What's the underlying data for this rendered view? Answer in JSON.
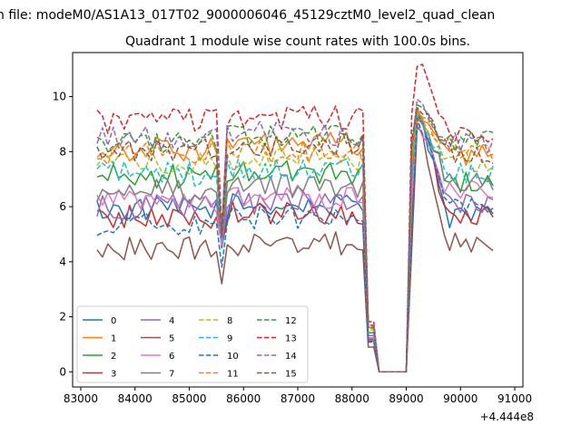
{
  "header": {
    "suptitle": "n file: modeM0/AS1A13_017T02_9000006046_45129cztM0_level2_quad_clean",
    "title": "Quadrant 1 module wise count rates with 100.0s bins."
  },
  "chart_data": {
    "type": "line",
    "title": "Quadrant 1 module wise count rates with 100.0s bins.",
    "xlabel": "",
    "ylabel": "",
    "x_offset_label": "+4.444e8",
    "xlim": [
      82850,
      91150
    ],
    "ylim": [
      -0.55,
      11.6
    ],
    "xticks": [
      83000,
      84000,
      85000,
      86000,
      87000,
      88000,
      89000,
      90000,
      91000
    ],
    "xtick_labels": [
      "83000",
      "84000",
      "85000",
      "86000",
      "87000",
      "88000",
      "89000",
      "90000",
      "91000"
    ],
    "yticks": [
      0,
      2,
      4,
      6,
      8,
      10
    ],
    "ytick_labels": [
      "0",
      "2",
      "4",
      "6",
      "8",
      "10"
    ],
    "grid": false,
    "legend_position": "lower-left",
    "legend_columns": 4,
    "x_range": {
      "start": 83300,
      "end": 90680,
      "step": 100
    },
    "gap": {
      "drop_from": 88250,
      "zero_from": 88450,
      "zero_to": 89050,
      "rise_at": 89150
    },
    "dip": {
      "x": 85600
    },
    "series": [
      {
        "name": "0",
        "color": "#1f77b4",
        "dash": "solid",
        "level": 5.9,
        "after_gap": 5.6,
        "peak": 9.4,
        "dip": 4.5,
        "end": 1.4
      },
      {
        "name": "1",
        "color": "#ff7f0e",
        "dash": "solid",
        "level": 8.1,
        "after_gap": 7.9,
        "peak": 9.6,
        "dip": 4.8,
        "end": 1.6
      },
      {
        "name": "2",
        "color": "#2ca02c",
        "dash": "solid",
        "level": 7.1,
        "after_gap": 6.9,
        "peak": 9.5,
        "dip": 4.6,
        "end": 1.5
      },
      {
        "name": "3",
        "color": "#d62728",
        "dash": "solid",
        "level": 5.6,
        "after_gap": 5.8,
        "peak": 9.3,
        "dip": 4.7,
        "end": 1.2
      },
      {
        "name": "4",
        "color": "#9467bd",
        "dash": "solid",
        "level": 6.0,
        "after_gap": 6.2,
        "peak": 9.2,
        "dip": 4.6,
        "end": 1.3
      },
      {
        "name": "5",
        "color": "#8c564b",
        "dash": "solid",
        "level": 4.5,
        "after_gap": 4.8,
        "peak": 8.9,
        "dip": 3.2,
        "end": 1.0
      },
      {
        "name": "6",
        "color": "#e377c2",
        "dash": "solid",
        "level": 6.2,
        "after_gap": 6.5,
        "peak": 9.1,
        "dip": 4.6,
        "end": 1.4
      },
      {
        "name": "7",
        "color": "#7f7f7f",
        "dash": "solid",
        "level": 6.6,
        "after_gap": 6.9,
        "peak": 9.3,
        "dip": 4.8,
        "end": 1.5
      },
      {
        "name": "8",
        "color": "#bcbd22",
        "dash": "dashed",
        "level": 7.6,
        "after_gap": 7.7,
        "peak": 9.4,
        "dip": 4.9,
        "end": 1.6
      },
      {
        "name": "9",
        "color": "#17becf",
        "dash": "dashed",
        "level": 7.2,
        "after_gap": 7.3,
        "peak": 9.3,
        "dip": 4.8,
        "end": 1.5
      },
      {
        "name": "10",
        "color": "#1f77b4",
        "dash": "dashed",
        "level": 5.4,
        "after_gap": 5.9,
        "peak": 9.2,
        "dip": 3.8,
        "end": 1.3
      },
      {
        "name": "11",
        "color": "#ff7f0e",
        "dash": "dashed",
        "level": 7.9,
        "after_gap": 8.1,
        "peak": 9.5,
        "dip": 4.9,
        "end": 1.6
      },
      {
        "name": "12",
        "color": "#2ca02c",
        "dash": "dashed",
        "level": 8.4,
        "after_gap": 8.4,
        "peak": 9.7,
        "dip": 5.0,
        "end": 1.7
      },
      {
        "name": "13",
        "color": "#d62728",
        "dash": "dashed",
        "level": 9.1,
        "after_gap": 8.8,
        "peak": 11.1,
        "dip": 5.2,
        "end": 1.8
      },
      {
        "name": "14",
        "color": "#9467bd",
        "dash": "dashed",
        "level": 8.5,
        "after_gap": 8.3,
        "peak": 9.9,
        "dip": 5.0,
        "end": 1.7
      },
      {
        "name": "15",
        "color": "#8c564b",
        "dash": "dashed",
        "level": 8.1,
        "after_gap": 8.0,
        "peak": 9.6,
        "dip": 4.9,
        "end": 1.6
      }
    ]
  }
}
